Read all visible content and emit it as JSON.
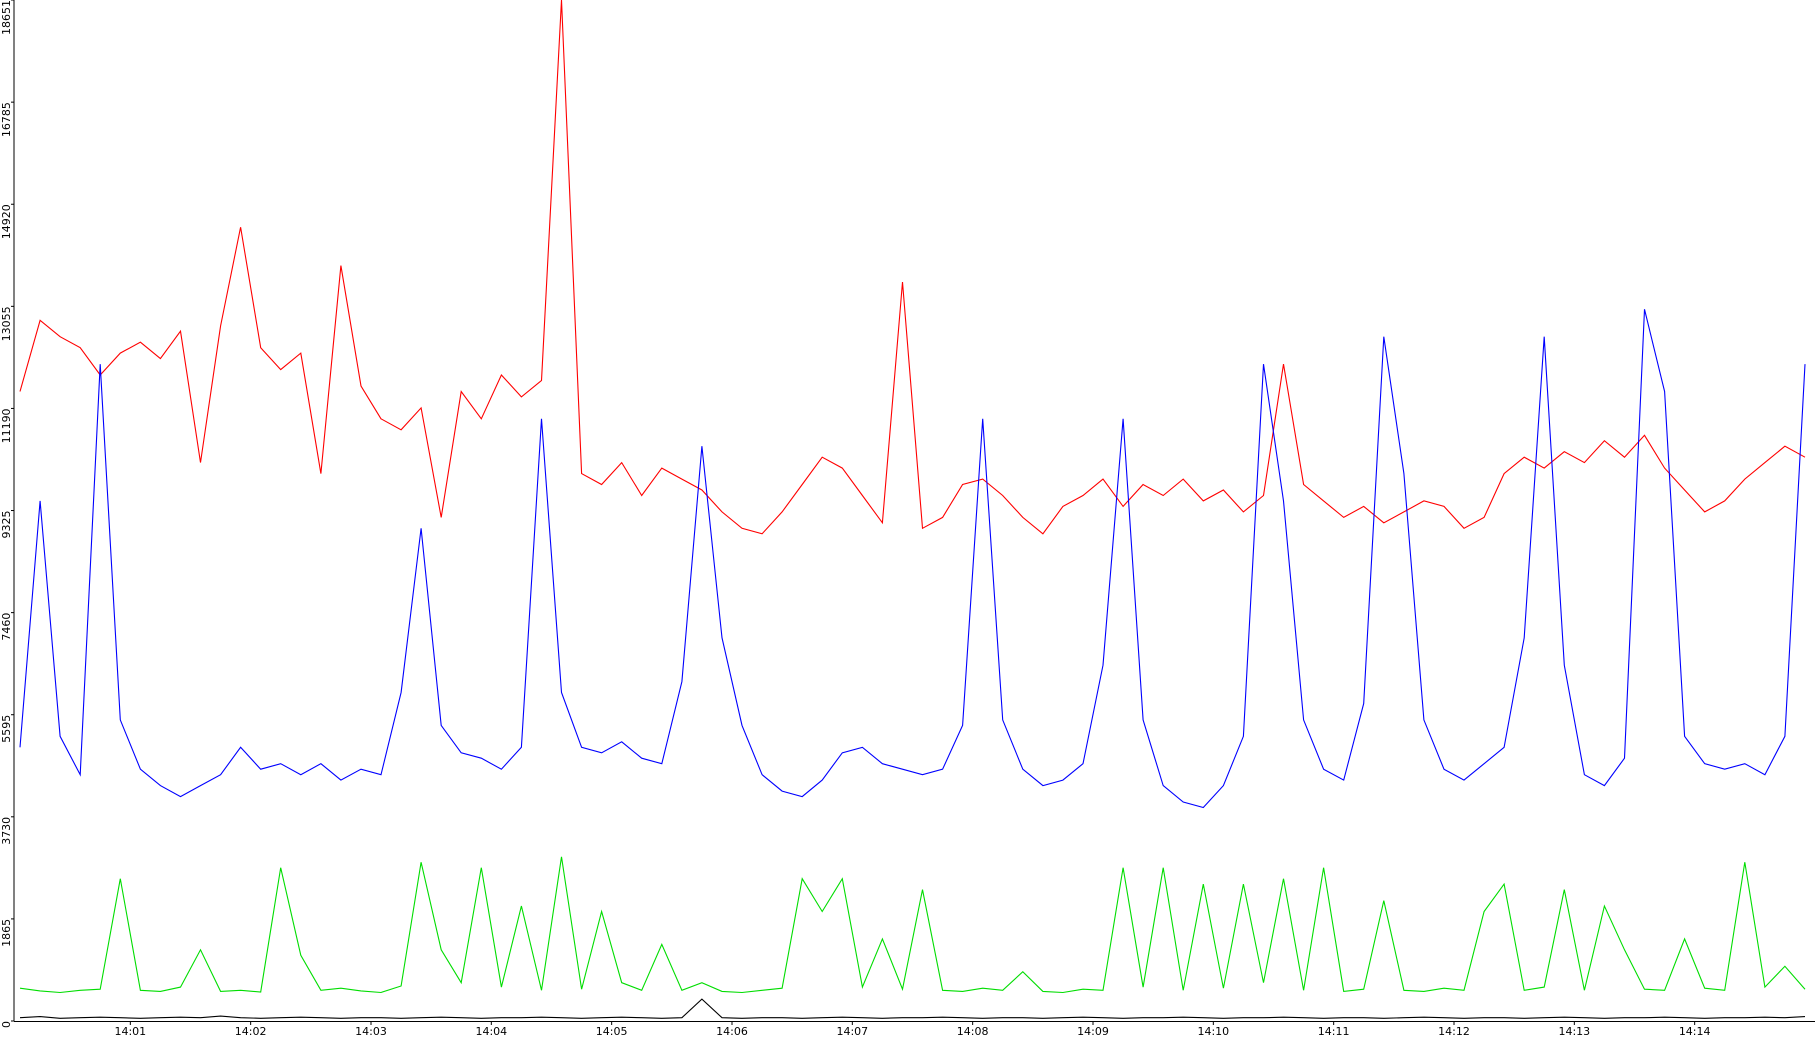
{
  "chart_data": {
    "type": "line",
    "x": [
      5,
      15,
      25,
      35,
      45,
      55,
      65,
      75,
      85,
      95,
      105,
      115,
      125,
      135,
      145,
      155,
      165,
      175,
      185,
      195,
      205,
      215,
      225,
      235,
      245,
      255,
      265,
      275,
      285,
      295,
      305,
      315,
      325,
      335,
      345,
      355,
      365,
      375,
      385,
      395,
      405,
      415,
      425,
      435,
      445,
      455,
      465,
      475,
      485,
      495,
      505,
      515,
      525,
      535,
      545,
      555,
      565,
      575,
      585,
      595,
      605,
      615,
      625,
      635,
      645,
      655,
      665,
      675,
      685,
      695,
      705,
      715,
      725,
      735,
      745,
      755,
      765,
      775,
      785,
      795,
      805,
      815,
      825,
      835,
      845,
      855,
      865,
      875,
      885,
      895
    ],
    "series": [
      {
        "color": "#ff0000",
        "values": [
          11500,
          12800,
          12500,
          12300,
          11800,
          12200,
          12400,
          12100,
          12600,
          10200,
          12700,
          14500,
          12300,
          11900,
          12200,
          10000,
          13800,
          11600,
          11000,
          10800,
          11200,
          9200,
          11500,
          11000,
          11800,
          11400,
          11700,
          18651,
          10000,
          9800,
          10200,
          9600,
          10100,
          9900,
          9700,
          9300,
          9000,
          8900,
          9300,
          9800,
          10300,
          10100,
          9600,
          9100,
          13500,
          9000,
          9200,
          9800,
          9900,
          9600,
          9200,
          8900,
          9400,
          9600,
          9900,
          9400,
          9800,
          9600,
          9900,
          9500,
          9700,
          9300,
          9600,
          12000,
          9800,
          9500,
          9200,
          9400,
          9100,
          9300,
          9500,
          9400,
          9000,
          9200,
          10000,
          10300,
          10100,
          10400,
          10200,
          10600,
          10300,
          10700,
          10100,
          9700,
          9300,
          9500,
          9900,
          10200,
          10500,
          10300
        ]
      },
      {
        "color": "#0000ff",
        "values": [
          5000,
          9500,
          5200,
          4500,
          12000,
          5500,
          4600,
          4300,
          4100,
          4300,
          4500,
          5000,
          4600,
          4700,
          4500,
          4700,
          4400,
          4600,
          4500,
          6000,
          9000,
          5400,
          4900,
          4800,
          4600,
          5000,
          11000,
          6000,
          5000,
          4900,
          5100,
          4800,
          4700,
          6200,
          10500,
          7000,
          5400,
          4500,
          4200,
          4100,
          4400,
          4900,
          5000,
          4700,
          4600,
          4500,
          4600,
          5400,
          11000,
          5500,
          4600,
          4300,
          4400,
          4700,
          6500,
          11000,
          5500,
          4300,
          4000,
          3900,
          4300,
          5200,
          12000,
          9500,
          5500,
          4600,
          4400,
          5800,
          12500,
          10000,
          5500,
          4600,
          4400,
          4700,
          5000,
          7000,
          12500,
          6500,
          4500,
          4300,
          4800,
          13000,
          11500,
          5200,
          4700,
          4600,
          4700,
          4500,
          5200,
          12000
        ]
      },
      {
        "color": "#00dd00",
        "values": [
          600,
          550,
          520,
          560,
          580,
          2600,
          560,
          540,
          620,
          1300,
          540,
          560,
          530,
          2800,
          1200,
          560,
          600,
          550,
          520,
          640,
          2900,
          1300,
          700,
          2800,
          620,
          2100,
          560,
          3000,
          580,
          2000,
          700,
          560,
          1400,
          560,
          700,
          540,
          520,
          560,
          600,
          2600,
          2000,
          2600,
          620,
          1500,
          580,
          2400,
          560,
          540,
          600,
          560,
          900,
          540,
          520,
          580,
          560,
          2800,
          620,
          2800,
          560,
          2500,
          600,
          2500,
          700,
          2600,
          560,
          2800,
          540,
          580,
          2200,
          560,
          540,
          600,
          560,
          2000,
          2500,
          560,
          620,
          2400,
          560,
          2100,
          1300,
          580,
          560,
          1500,
          600,
          560,
          2900,
          620,
          1000,
          580
        ]
      },
      {
        "color": "#000000",
        "values": [
          60,
          80,
          50,
          60,
          70,
          60,
          50,
          60,
          70,
          60,
          90,
          60,
          50,
          60,
          70,
          60,
          50,
          60,
          60,
          50,
          60,
          70,
          60,
          50,
          60,
          60,
          70,
          60,
          50,
          60,
          70,
          60,
          50,
          60,
          400,
          60,
          50,
          60,
          60,
          50,
          60,
          70,
          60,
          50,
          60,
          60,
          70,
          60,
          50,
          60,
          60,
          50,
          60,
          70,
          60,
          50,
          60,
          60,
          70,
          60,
          50,
          60,
          60,
          70,
          60,
          50,
          60,
          60,
          50,
          60,
          70,
          60,
          50,
          60,
          60,
          50,
          60,
          70,
          60,
          50,
          60,
          60,
          70,
          60,
          50,
          60,
          60,
          70,
          60,
          80
        ]
      }
    ],
    "xlim": [
      2,
      900
    ],
    "xticks": [
      {
        "value": 60,
        "label": "14:01"
      },
      {
        "value": 120,
        "label": "14:02"
      },
      {
        "value": 180,
        "label": "14:03"
      },
      {
        "value": 240,
        "label": "14:04"
      },
      {
        "value": 300,
        "label": "14:05"
      },
      {
        "value": 360,
        "label": "14:06"
      },
      {
        "value": 420,
        "label": "14:07"
      },
      {
        "value": 480,
        "label": "14:08"
      },
      {
        "value": 540,
        "label": "14:09"
      },
      {
        "value": 600,
        "label": "14:10"
      },
      {
        "value": 660,
        "label": "14:11"
      },
      {
        "value": 720,
        "label": "14:12"
      },
      {
        "value": 780,
        "label": "14:13"
      },
      {
        "value": 840,
        "label": "14:14"
      }
    ],
    "ylim": [
      0,
      18651
    ],
    "yticks": [
      0,
      1865,
      3730,
      5595,
      7460,
      9325,
      11190,
      13055,
      14920,
      16785,
      18651
    ],
    "grid": false
  }
}
